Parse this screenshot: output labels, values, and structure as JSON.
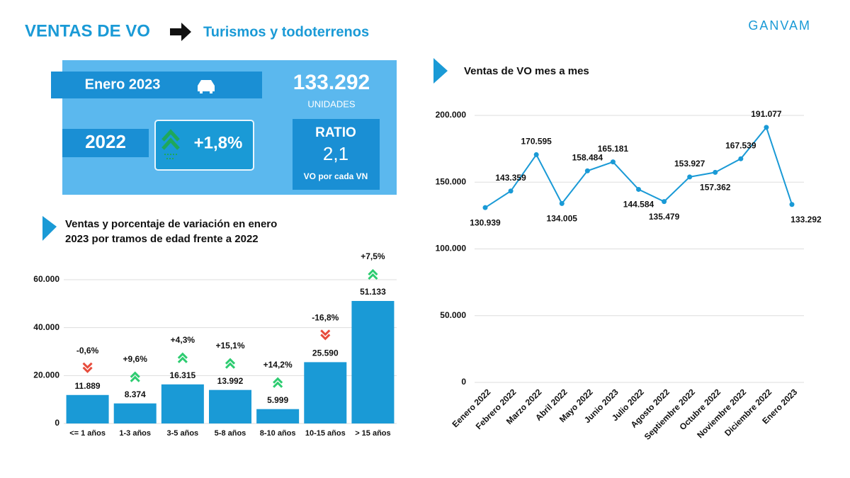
{
  "header": {
    "title": "VENTAS DE VO",
    "subtitle": "Turismos y todoterrenos",
    "brand": "GANVAM"
  },
  "kpi": {
    "period": "Enero 2023",
    "units": "133.292",
    "units_caption": "UNIDADES",
    "prior_year": "2022",
    "change": "+1,8%",
    "ratio_title": "RATIO",
    "ratio": "2,1",
    "ratio_caption": "VO por cada VN"
  },
  "chart_data": [
    {
      "type": "bar",
      "title": "Ventas y porcentaje de variación en enero 2023 por tramos de edad frente a 2022",
      "categories": [
        "<= 1 años",
        "1-3 años",
        "3-5 años",
        "5-8 años",
        "8-10 años",
        "10-15 años",
        "> 15 años"
      ],
      "values": [
        11889,
        8374,
        16315,
        13992,
        5999,
        25590,
        51133
      ],
      "value_labels": [
        "11.889",
        "8.374",
        "16.315",
        "13.992",
        "5.999",
        "25.590",
        "51.133"
      ],
      "changes": [
        -0.6,
        9.6,
        4.3,
        15.1,
        14.2,
        -16.8,
        7.5
      ],
      "change_labels": [
        "-0,6%",
        "+9,6%",
        "+4,3%",
        "+15,1%",
        "+14,2%",
        "-16,8%",
        "+7,5%"
      ],
      "color": "#1a9ad6",
      "ylim": [
        0,
        60000
      ],
      "yticks": [
        0,
        {
          "value": 20000,
          "label": "20.000"
        },
        {
          "value": 40000,
          "label": "40.000"
        },
        {
          "value": 60000,
          "label": "60.000"
        }
      ],
      "grid": true
    },
    {
      "type": "line",
      "title": "Ventas de VO mes a mes",
      "categories": [
        "Eenero 2022",
        "Febrero 2022",
        "Marzo 2022",
        "Abril 2022",
        "Mayo 2022",
        "Junio 2023",
        "Julio 2022",
        "Agosto 2022",
        "Septiembre 2022",
        "Octubre 2022",
        "Noviembre 2022",
        "Diciembre 2022",
        "Enero 2023"
      ],
      "values": [
        130939,
        143359,
        170595,
        134005,
        158484,
        165181,
        144584,
        135479,
        153927,
        157362,
        167539,
        191077,
        133292
      ],
      "value_labels": [
        "130.939",
        "143.359",
        "170.595",
        "134.005",
        "158.484",
        "165.181",
        "144.584",
        "135.479",
        "153.927",
        "157.362",
        "167.539",
        "191.077",
        "133.292"
      ],
      "color": "#1a9ad6",
      "ylim": [
        0,
        200000
      ],
      "yticks": [
        0,
        {
          "value": 50000,
          "label": "50.000"
        },
        {
          "value": 100000,
          "label": "100.000"
        },
        {
          "value": 150000,
          "label": "150.000"
        },
        {
          "value": 200000,
          "label": "200.000"
        }
      ],
      "grid": true
    }
  ]
}
